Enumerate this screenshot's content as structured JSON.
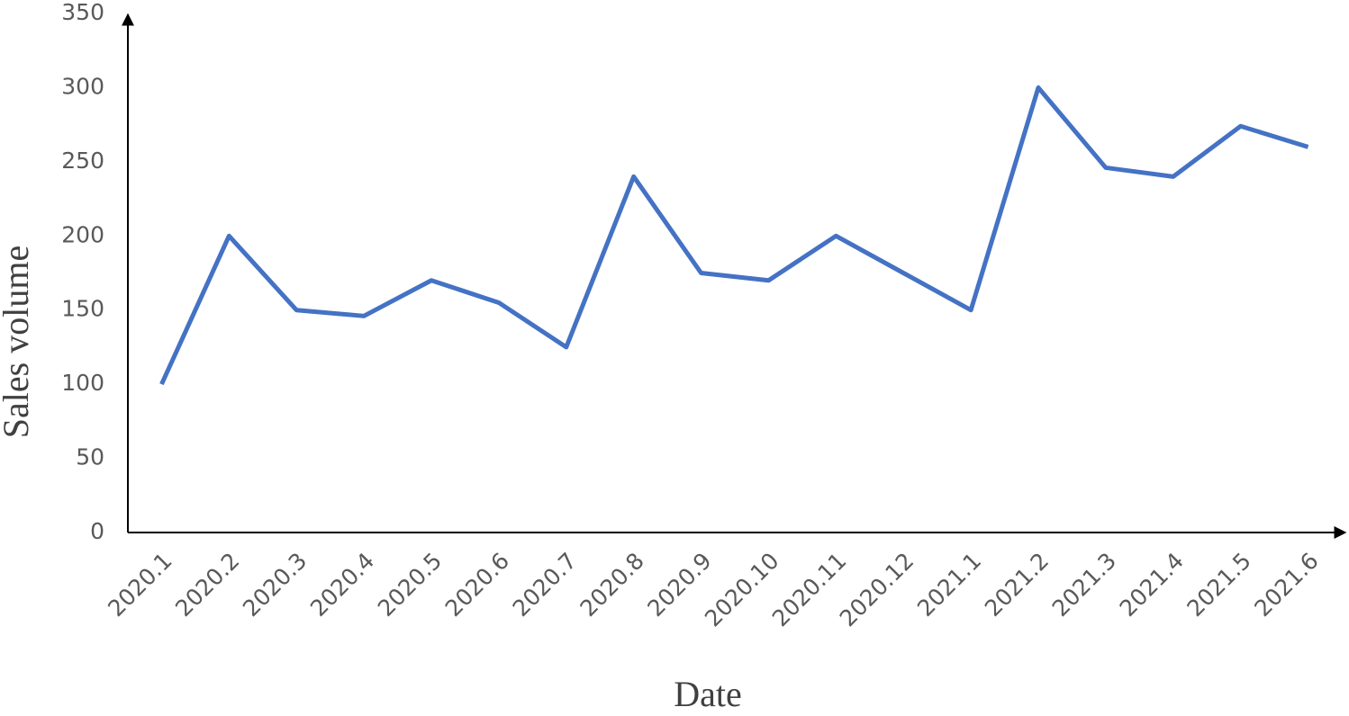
{
  "chart_data": {
    "type": "line",
    "x_label": "Date",
    "y_label": "Sales volume",
    "categories": [
      "2020.1",
      "2020.2",
      "2020.3",
      "2020.4",
      "2020.5",
      "2020.6",
      "2020.7",
      "2020.8",
      "2020.9",
      "2020.10",
      "2020.11",
      "2020.12",
      "2021.1",
      "2021.2",
      "2021.3",
      "2021.4",
      "2021.5",
      "2021.6"
    ],
    "values": [
      100,
      200,
      150,
      146,
      170,
      155,
      125,
      240,
      175,
      170,
      200,
      175,
      150,
      300,
      246,
      240,
      274,
      260
    ],
    "color": "#4472c4",
    "ylim": [
      0,
      350
    ],
    "yticks": [
      0,
      50,
      100,
      150,
      200,
      250,
      300,
      350
    ],
    "grid": false
  }
}
